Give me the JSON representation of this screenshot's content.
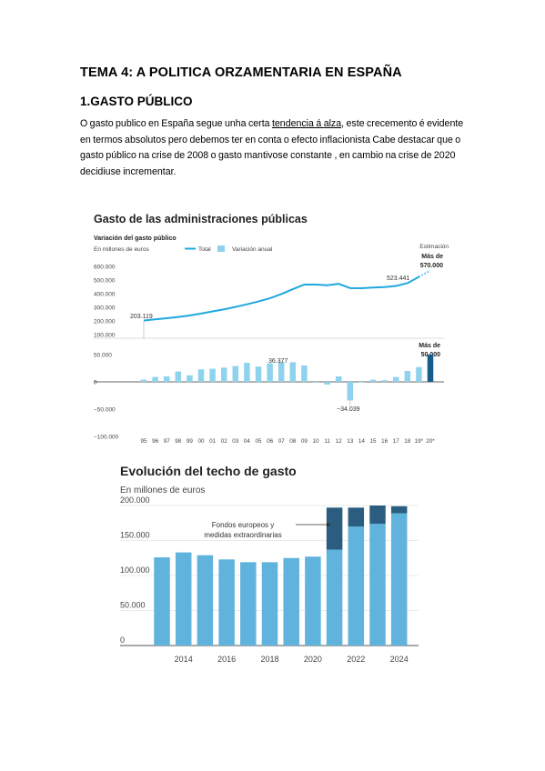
{
  "document": {
    "heading": "TEMA 4: A POLITICA ORZAMENTARIA EN ESPAÑA",
    "section": "1.GASTO PÚBLICO",
    "para_1": "O gasto publico en España segue unha certa ",
    "para_link": "tendencia á alza",
    "para_2": ", este crecemento é evidente en termos absolutos pero debemos ter en conta o efecto inflacionista  Cabe destacar que o gasto público na crise de 2008 o gasto mantivose constante , en cambio na crise de 2020 decidiuse incrementar."
  },
  "colors": {
    "line": "#1fa8dd",
    "bar_light": "#8fd2ee",
    "bar_dark": "#175d8a",
    "bar2_light": "#5fb3dd",
    "bar2_dark": "#2b5d80",
    "axis": "#333333"
  },
  "chart_data": [
    {
      "type": "line+bar",
      "title": "Gasto de las administraciones públicas",
      "subtitle": "Variación del gasto público",
      "unit_label": "En millones de euros",
      "legend": [
        "Total",
        "Variación anual"
      ],
      "estimate_label": "Estimación",
      "estimate_total_label": [
        "Más de",
        "570.000"
      ],
      "estimate_var_label": [
        "Más de",
        "50.000"
      ],
      "categories": [
        "95",
        "96",
        "97",
        "98",
        "99",
        "00",
        "01",
        "02",
        "03",
        "04",
        "05",
        "06",
        "07",
        "08",
        "09",
        "10",
        "11",
        "12",
        "13",
        "14",
        "15",
        "16",
        "17",
        "18",
        "19*",
        "20*"
      ],
      "total": [
        203119,
        212000,
        220000,
        229000,
        240000,
        254000,
        270000,
        285000,
        303000,
        322000,
        343000,
        366000,
        397000,
        433000,
        467000,
        467000,
        462000,
        472000,
        441000,
        440000,
        445000,
        448000,
        457000,
        477000,
        523441,
        570000
      ],
      "variation": [
        4000,
        9000,
        10000,
        19000,
        12000,
        23000,
        24000,
        26000,
        29000,
        35000,
        28000,
        34000,
        36377,
        36000,
        30000,
        0,
        -5000,
        10000,
        -34039,
        -1000,
        4000,
        3000,
        9000,
        20000,
        27000,
        50000
      ],
      "annotations": [
        "203.119",
        "523.441",
        "36.377",
        "−34.039"
      ],
      "y_ticks_total": [
        "600.000",
        "500.000",
        "400.000",
        "300.000",
        "200.000",
        "100.000"
      ],
      "y_ticks_var": [
        "50.000",
        "0",
        "−50.000",
        "−100.000"
      ],
      "ylim_total": [
        100000,
        600000
      ],
      "ylim_var": [
        -100000,
        100000
      ]
    },
    {
      "type": "bar",
      "title": "Evolución del techo de gasto",
      "subtitle": "En millones de euros",
      "annotation": [
        "Fondos europeos y",
        "medidas extraordinarias"
      ],
      "categories": [
        "2013",
        "2014",
        "2015",
        "2016",
        "2017",
        "2018",
        "2019",
        "2020",
        "2021",
        "2022",
        "2023",
        "2024"
      ],
      "x_tick_labels": [
        "2014",
        "2016",
        "2018",
        "2020",
        "2022",
        "2024"
      ],
      "series": [
        {
          "values": [
            126000,
            133000,
            129000,
            123000,
            119000,
            119000,
            125000,
            127000,
            137000,
            170000,
            174000,
            189000
          ]
        },
        {
          "values": [
            0,
            0,
            0,
            0,
            0,
            0,
            0,
            0,
            60000,
            27000,
            26000,
            10000
          ]
        }
      ],
      "y_ticks": [
        "200.000",
        "150.000",
        "100.000",
        "50.000",
        "0"
      ],
      "ylim": [
        0,
        200000
      ]
    }
  ]
}
